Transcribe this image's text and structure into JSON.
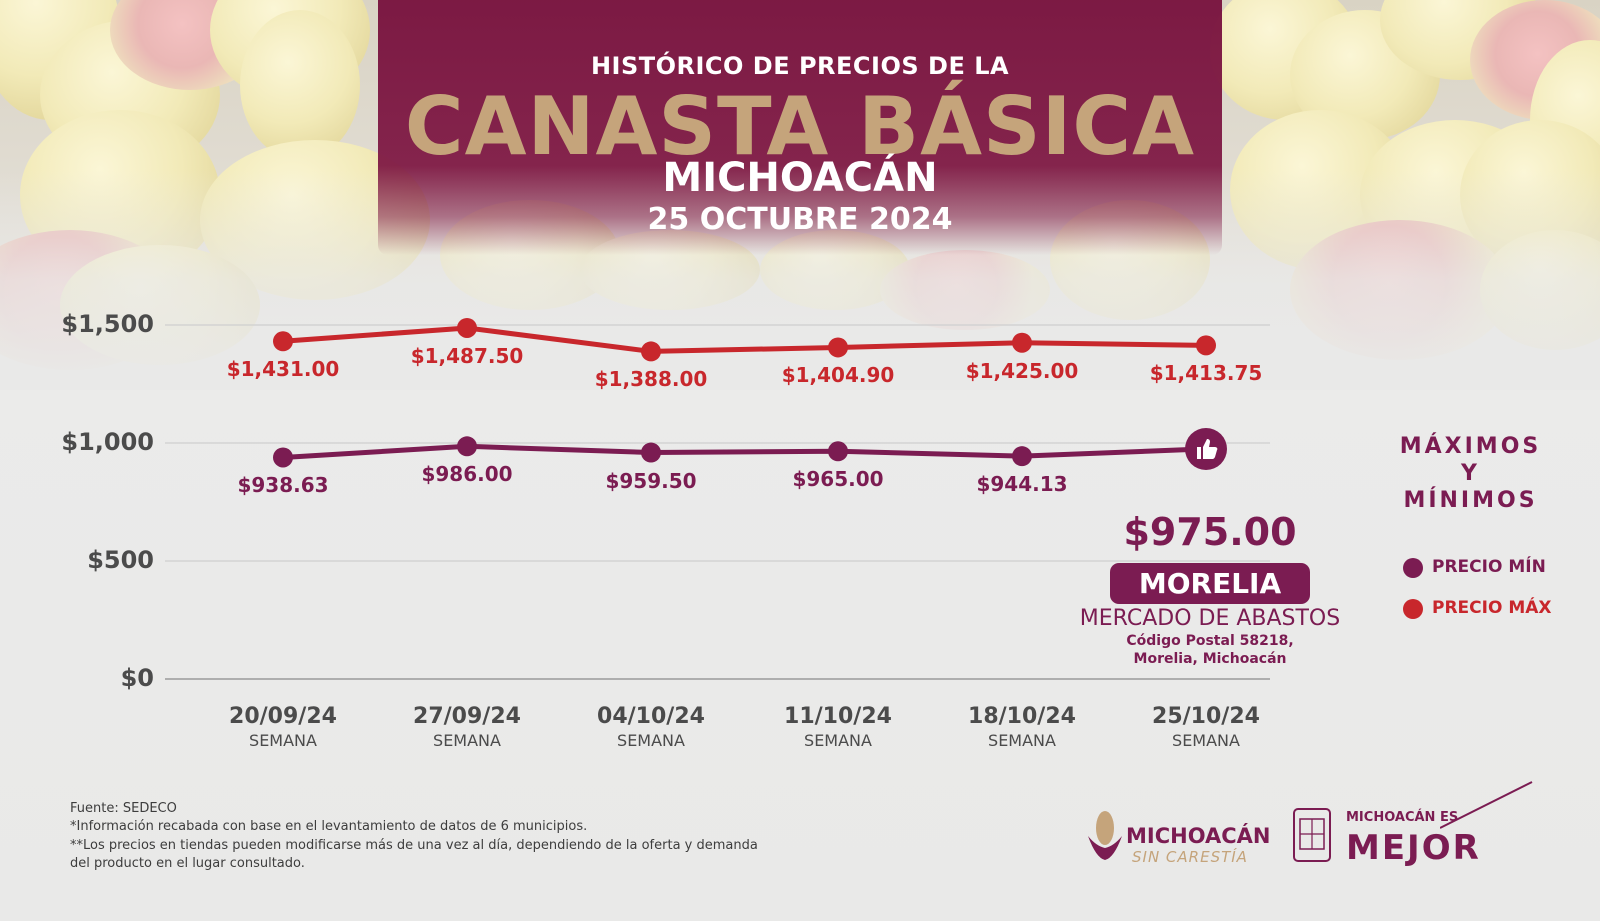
{
  "header": {
    "line1": "HISTÓRICO DE PRECIOS DE LA",
    "line2": "CANASTA BÁSICA",
    "line3": "MICHOACÁN",
    "line4": "25 OCTUBRE 2024"
  },
  "chart_data": {
    "type": "line",
    "categories": [
      "20/09/24",
      "27/09/24",
      "04/10/24",
      "11/10/24",
      "18/10/24",
      "25/10/24"
    ],
    "category_sublabel": "SEMANA",
    "yticks": [
      "$1,500",
      "$1,000",
      "$500",
      "$0"
    ],
    "ytick_values": [
      1500,
      1000,
      500,
      0
    ],
    "ylim": [
      0,
      1500
    ],
    "grid": true,
    "series": [
      {
        "name": "PRECIO MÁX",
        "color": "#c8272c",
        "values": [
          1431.0,
          1487.5,
          1388.0,
          1404.9,
          1425.0,
          1413.75
        ],
        "labels": [
          "$1,431.00",
          "$1,487.50",
          "$1,388.00",
          "$1,404.90",
          "$1,425.00",
          "$1,413.75"
        ]
      },
      {
        "name": "PRECIO MÍN",
        "color": "#7b1c52",
        "values": [
          938.63,
          986.0,
          959.5,
          965.0,
          944.13,
          975.0
        ],
        "labels": [
          "$938.63",
          "$986.00",
          "$959.50",
          "$965.00",
          "$944.13",
          "$975.00"
        ]
      }
    ],
    "legend_position": "right"
  },
  "highlight": {
    "value": "$975.00",
    "city": "MORELIA",
    "market": "MERCADO DE ABASTOS",
    "postal": "Código Postal 58218,",
    "location": "Morelia, Michoacán",
    "icon": "thumbs-up-icon"
  },
  "legend": {
    "title1": "MÁXIMOS",
    "title2": "Y",
    "title3": "MÍNIMOS",
    "min_label": "PRECIO MÍN",
    "max_label": "PRECIO MÁX",
    "min_color": "#7b1c52",
    "max_color": "#c8272c"
  },
  "footer": {
    "source": "Fuente: SEDECO",
    "note1": "*Información recabada con base en el levantamiento de datos de 6 municipios.",
    "note2": "**Los precios en tiendas pueden modificarse más de una vez al día, dependiendo de la oferta y demanda",
    "note3": "del producto en el lugar consultado."
  },
  "logos": {
    "logo1_line1": "MICHOACÁN",
    "logo1_line2": "SIN CARESTÍA",
    "logo2_line1": "MICHOACÁN ES",
    "logo2_line2": "MEJOR"
  }
}
